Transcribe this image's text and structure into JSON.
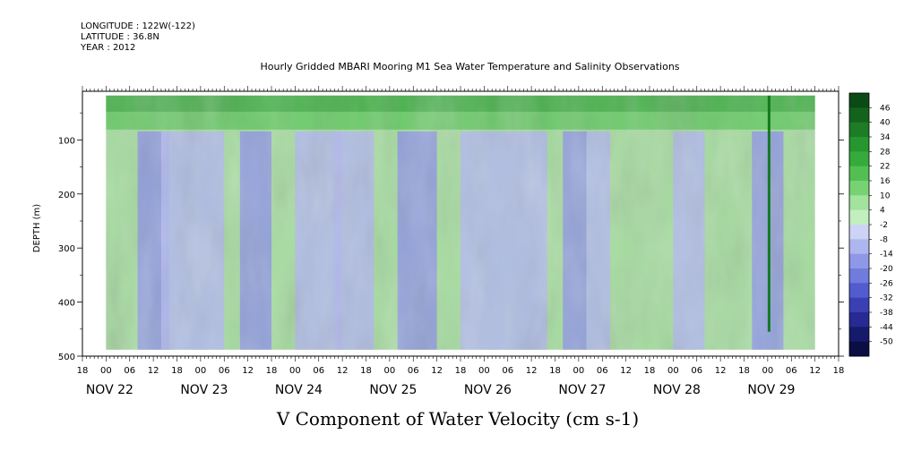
{
  "meta": {
    "longitude": "LONGITUDE : 122W(-122)",
    "latitude": "LATITUDE : 36.8N",
    "year": "YEAR : 2012"
  },
  "chart_data": {
    "type": "heatmap",
    "title": "Hourly Gridded MBARI Mooring M1 Sea Water Temperature and Salinity Observations",
    "xlabel": "V Component of Water Velocity (cm s-1)",
    "ylabel": "DEPTH (m)",
    "yticks": [
      100,
      200,
      300,
      400,
      500
    ],
    "ylim": [
      500,
      10
    ],
    "x_tick_hours": [
      "18",
      "00",
      "06",
      "12",
      "18",
      "00",
      "06",
      "12",
      "18",
      "00",
      "06",
      "12",
      "18",
      "00",
      "06",
      "12",
      "18",
      "00",
      "06",
      "12",
      "18",
      "00",
      "06",
      "12",
      "18",
      "00",
      "06",
      "12",
      "18",
      "00",
      "06",
      "12",
      "18"
    ],
    "date_labels": [
      "NOV 22",
      "NOV 23",
      "NOV 24",
      "NOV 25",
      "NOV 26",
      "NOV 27",
      "NOV 28",
      "NOV 29"
    ],
    "colorbar_levels": [
      "46",
      "40",
      "34",
      "28",
      "22",
      "16",
      "10",
      "4",
      "-2",
      "-8",
      "-14",
      "-20",
      "-26",
      "-32",
      "-38",
      "-44",
      "-50"
    ],
    "colorbar_colors": [
      "#0b4a14",
      "#13631c",
      "#1c7d26",
      "#26962f",
      "#35ab3c",
      "#52bf52",
      "#77d274",
      "#a2e39d",
      "#c2efbd",
      "#cdd3f5",
      "#aeb6ef",
      "#8f98e6",
      "#717bdb",
      "#535ccd",
      "#3a40b4",
      "#262a92",
      "#161a6a",
      "#0b0d45"
    ],
    "data_start_hour": 6,
    "data_end_hour": 186,
    "data_depth_range": [
      18,
      488
    ]
  }
}
